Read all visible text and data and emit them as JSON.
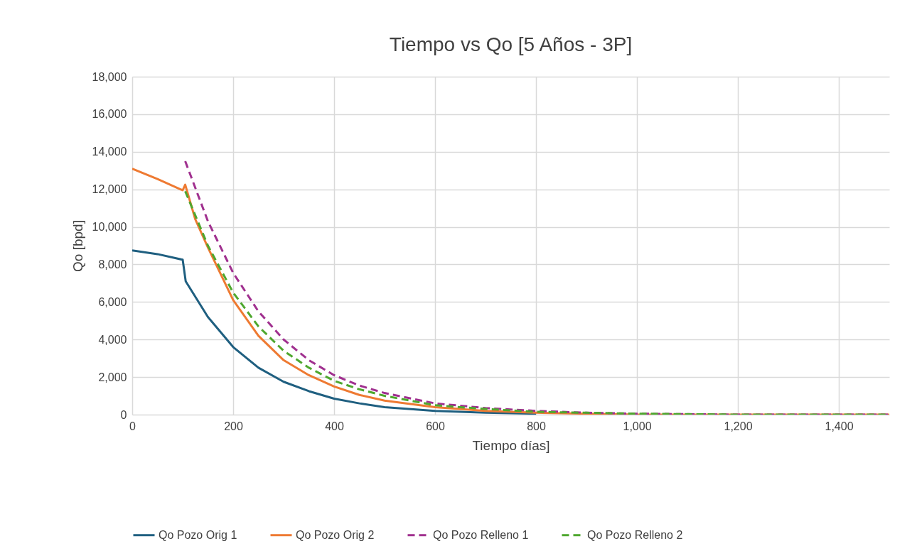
{
  "chart_data": {
    "type": "line",
    "title": "Tiempo vs Qo [5 Años - 3P]",
    "xlabel": "Tiempo días]",
    "ylabel": "Qo [bpd]",
    "xlim": [
      0,
      1500
    ],
    "xticks": [
      0,
      {
        "value": 200,
        "label": "200"
      },
      {
        "value": 400,
        "label": "400"
      },
      {
        "value": 600,
        "label": "600"
      },
      {
        "value": 800,
        "label": "800"
      },
      {
        "value": 1000,
        "label": "1,000"
      },
      {
        "value": 1200,
        "label": "1,200"
      },
      {
        "value": 1400,
        "label": "1,400"
      }
    ],
    "ylim": [
      0,
      18000
    ],
    "yticks": [
      0,
      {
        "value": 2000,
        "label": "2,000"
      },
      {
        "value": 4000,
        "label": "4,000"
      },
      {
        "value": 6000,
        "label": "6,000"
      },
      {
        "value": 8000,
        "label": "8,000"
      },
      {
        "value": 10000,
        "label": "10,000"
      },
      {
        "value": 12000,
        "label": "12,000"
      },
      {
        "value": 14000,
        "label": "14,000"
      },
      {
        "value": 16000,
        "label": "16,000"
      },
      {
        "value": 18000,
        "label": "18,000"
      }
    ],
    "grid": true,
    "legend": "bottom",
    "marker": "none",
    "series": [
      {
        "name": "Qo Pozo Orig 1",
        "color": "#1f5f80",
        "line_style": "solid",
        "x": [
          0,
          50,
          100,
          106,
          150,
          200,
          250,
          300,
          350,
          400,
          450,
          500,
          600,
          700,
          800
        ],
        "values": [
          8750,
          8550,
          8250,
          7100,
          5200,
          3600,
          2500,
          1750,
          1250,
          850,
          600,
          400,
          200,
          100,
          50
        ]
      },
      {
        "name": "Qo Pozo Orig 2",
        "color": "#ee7a32",
        "line_style": "solid",
        "x": [
          0,
          50,
          100,
          105,
          125,
          150,
          200,
          250,
          300,
          350,
          400,
          450,
          500,
          600,
          700,
          800,
          900,
          1000,
          1500
        ],
        "values": [
          13100,
          12550,
          11950,
          12250,
          10400,
          8900,
          6100,
          4200,
          2900,
          2100,
          1500,
          1050,
          750,
          400,
          200,
          100,
          50,
          0,
          0
        ]
      },
      {
        "name": "Qo Pozo Relleno 1",
        "color": "#a0308f",
        "line_style": "dashed",
        "x": [
          105,
          150,
          200,
          250,
          300,
          350,
          400,
          450,
          500,
          600,
          700,
          800,
          900,
          1000,
          1200,
          1500
        ],
        "values": [
          13500,
          10300,
          7550,
          5500,
          4000,
          2900,
          2100,
          1550,
          1150,
          600,
          350,
          200,
          100,
          50,
          0,
          0
        ]
      },
      {
        "name": "Qo Pozo Relleno 2",
        "color": "#4ea72e",
        "line_style": "dashed",
        "x": [
          105,
          150,
          200,
          250,
          300,
          350,
          400,
          450,
          500,
          600,
          700,
          800,
          900,
          1000,
          1200,
          1500
        ],
        "values": [
          11900,
          9000,
          6500,
          4700,
          3400,
          2500,
          1800,
          1350,
          1000,
          500,
          300,
          150,
          100,
          50,
          0,
          0
        ]
      }
    ]
  }
}
